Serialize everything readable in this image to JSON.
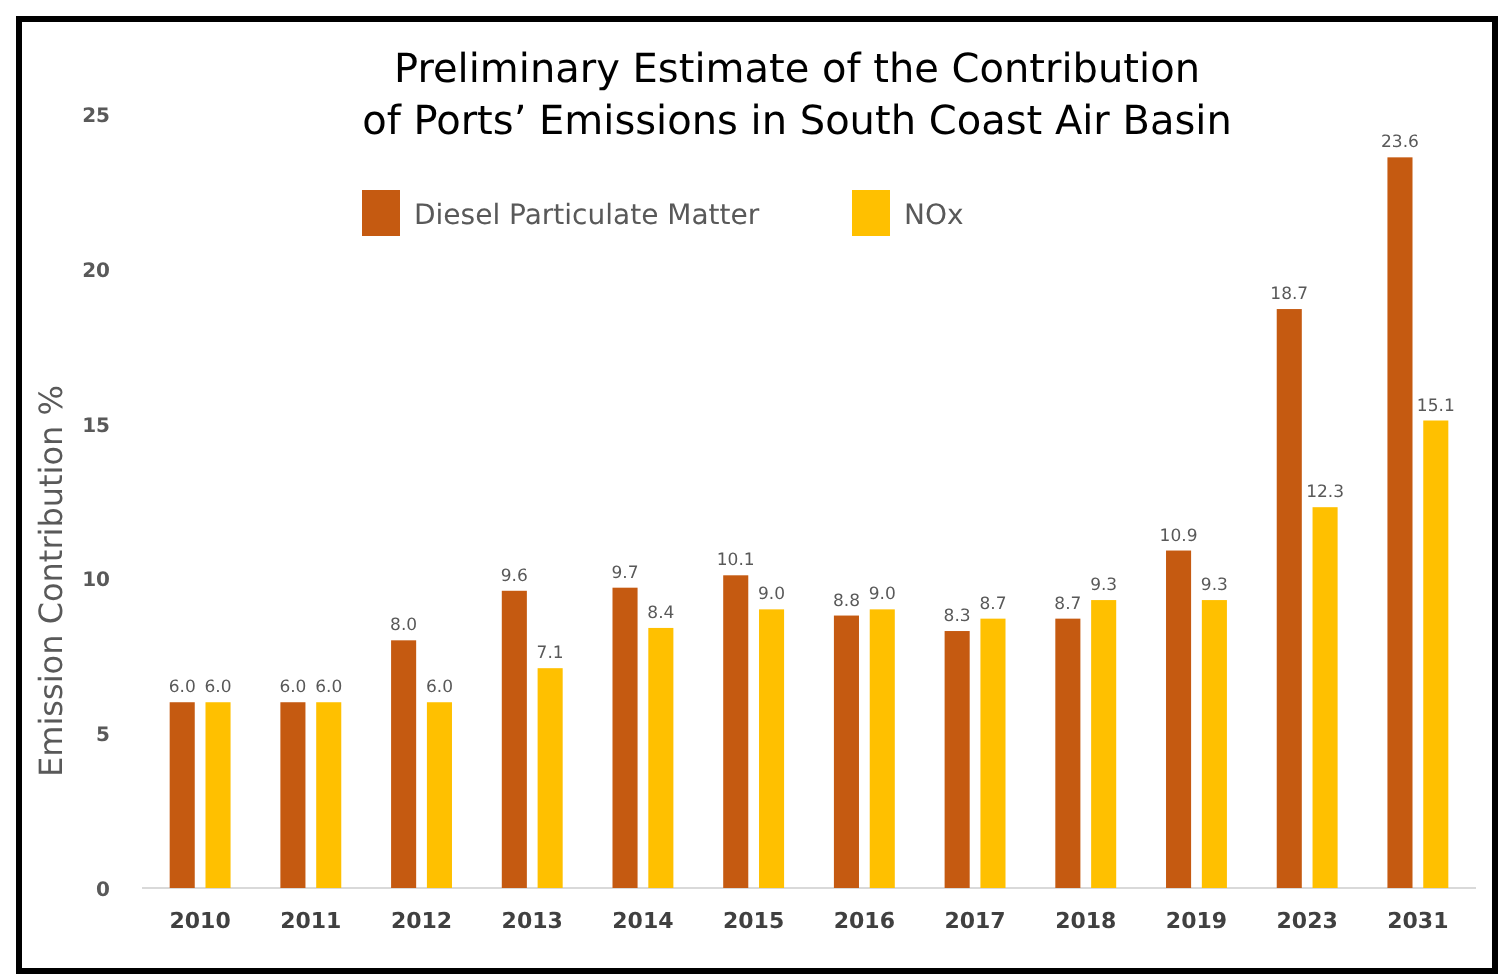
{
  "chart_data": {
    "type": "bar",
    "title": "Preliminary Estimate of the Contribution\nof Ports’ Emissions in South Coast Air Basin",
    "ylabel": "Emission Contribution %",
    "categories": [
      "2010",
      "2011",
      "2012",
      "2013",
      "2014",
      "2015",
      "2016",
      "2017",
      "2018",
      "2019",
      "2023",
      "2031"
    ],
    "series": [
      {
        "name": "Diesel Particulate Matter",
        "color": "#c55a11",
        "values": [
          6.0,
          6.0,
          8.0,
          9.6,
          9.7,
          10.1,
          8.8,
          8.3,
          8.7,
          10.9,
          18.7,
          23.6
        ],
        "value_labels": [
          "6.0",
          "6.0",
          "8.0",
          "9.6",
          "9.7",
          "10.1",
          "8.8",
          "8.3",
          "8.7",
          "10.9",
          "18.7",
          "23.6"
        ]
      },
      {
        "name": "NOx",
        "color": "#ffc000",
        "values": [
          6.0,
          6.0,
          6.0,
          7.1,
          8.4,
          9.0,
          9.0,
          8.7,
          9.3,
          9.3,
          12.3,
          15.1
        ],
        "value_labels": [
          "6.0",
          "6.0",
          "6.0",
          "7.1",
          "8.4",
          "9.0",
          "9.0",
          "8.7",
          "9.3",
          "9.3",
          "12.3",
          "15.1"
        ]
      }
    ],
    "ylim": [
      0,
      25
    ],
    "yticks": [
      0,
      5,
      10,
      15,
      20,
      25
    ],
    "grid": false,
    "legend": "top"
  }
}
